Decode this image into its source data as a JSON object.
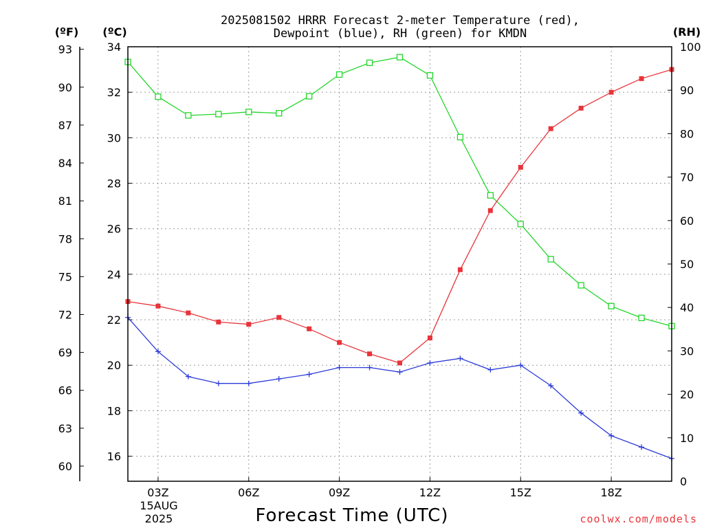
{
  "chart_data": {
    "type": "line",
    "title_line1": "2025081502 HRRR Forecast 2-meter Temperature (red),",
    "title_line2": "Dewpoint (blue), RH (green) for KMDN",
    "xlabel": "Forecast Time (UTC)",
    "credit": "coolwx.com/models",
    "unit_f": "(ºF)",
    "unit_c": "(ºC)",
    "unit_rh": "(RH)",
    "date_label_line1": "15AUG",
    "date_label_line2": "2025",
    "x_hours": [
      2,
      3,
      4,
      5,
      6,
      7,
      8,
      9,
      10,
      11,
      12,
      13,
      14,
      15,
      16,
      17,
      18,
      19,
      20
    ],
    "x_ticks": [
      {
        "hour": 3,
        "label": "03Z"
      },
      {
        "hour": 6,
        "label": "06Z"
      },
      {
        "hour": 9,
        "label": "09Z"
      },
      {
        "hour": 12,
        "label": "12Z"
      },
      {
        "hour": 15,
        "label": "15Z"
      },
      {
        "hour": 18,
        "label": "18Z"
      }
    ],
    "xlim": [
      2,
      20
    ],
    "ylim_c": [
      14.9,
      34
    ],
    "ylim_rh": [
      0,
      100
    ],
    "ylim_f": [
      58.8,
      93.2
    ],
    "c_ticks": [
      "34",
      "32",
      "30",
      "28",
      "26",
      "24",
      "22",
      "20",
      "18",
      "16"
    ],
    "f_ticks": [
      "93",
      "90",
      "87",
      "84",
      "81",
      "78",
      "75",
      "72",
      "69",
      "66",
      "63",
      "60"
    ],
    "rh_ticks": [
      "100",
      "90",
      "80",
      "70",
      "60",
      "50",
      "40",
      "30",
      "20",
      "10",
      "0"
    ],
    "series": [
      {
        "key": "temperature",
        "axis": "c",
        "color": "#e8343a",
        "marker": "filled-square",
        "values": [
          22.8,
          22.6,
          22.3,
          21.9,
          21.8,
          22.1,
          21.6,
          21.0,
          20.5,
          20.1,
          21.2,
          24.2,
          26.8,
          28.7,
          30.4,
          31.3,
          32.0,
          32.6,
          33.0
        ]
      },
      {
        "key": "dewpoint",
        "axis": "c",
        "color": "#2b3bd6",
        "marker": "plus",
        "values": [
          22.1,
          20.6,
          19.5,
          19.2,
          19.2,
          19.4,
          19.6,
          19.9,
          19.9,
          19.7,
          20.1,
          20.3,
          19.8,
          20.0,
          19.1,
          17.9,
          16.9,
          16.4,
          15.9
        ]
      },
      {
        "key": "rh",
        "axis": "rh",
        "color": "#22d62a",
        "marker": "open-square",
        "values": [
          96.5,
          88.5,
          84.2,
          84.5,
          85.0,
          84.7,
          88.6,
          93.6,
          96.3,
          97.6,
          93.4,
          79.2,
          65.8,
          59.2,
          51.1,
          45.1,
          40.3,
          37.6,
          35.7
        ]
      }
    ]
  }
}
